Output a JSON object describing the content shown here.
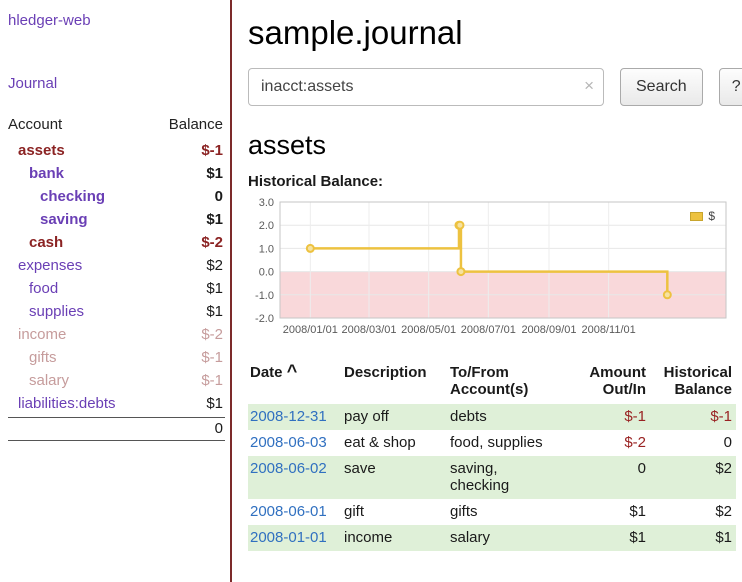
{
  "app": {
    "brand": "hledger-web",
    "nav_journal": "Journal"
  },
  "sidebar": {
    "accounts_header": {
      "account": "Account",
      "balance": "Balance"
    },
    "accounts": [
      {
        "name": "assets",
        "balance": "$-1",
        "indent": 0,
        "bold": true,
        "name_color": "red",
        "balance_color": "red"
      },
      {
        "name": "bank",
        "balance": "$1",
        "indent": 1,
        "bold": true,
        "name_color": "purple",
        "balance_color": "black"
      },
      {
        "name": "checking",
        "balance": "0",
        "indent": 2,
        "bold": true,
        "name_color": "purple",
        "balance_color": "black"
      },
      {
        "name": "saving",
        "balance": "$1",
        "indent": 2,
        "bold": true,
        "name_color": "purple",
        "balance_color": "black"
      },
      {
        "name": "cash",
        "balance": "$-2",
        "indent": 1,
        "bold": true,
        "name_color": "red",
        "balance_color": "red"
      },
      {
        "name": "expenses",
        "balance": "$2",
        "indent": 0,
        "bold": false,
        "name_color": "purple",
        "balance_color": "black"
      },
      {
        "name": "food",
        "balance": "$1",
        "indent": 1,
        "bold": false,
        "name_color": "purple",
        "balance_color": "black"
      },
      {
        "name": "supplies",
        "balance": "$1",
        "indent": 1,
        "bold": false,
        "name_color": "purple",
        "balance_color": "black"
      },
      {
        "name": "income",
        "balance": "$-2",
        "indent": 0,
        "bold": false,
        "name_color": "dimred",
        "balance_color": "dimred"
      },
      {
        "name": "gifts",
        "balance": "$-1",
        "indent": 1,
        "bold": false,
        "name_color": "dimred",
        "balance_color": "dimred"
      },
      {
        "name": "salary",
        "balance": "$-1",
        "indent": 1,
        "bold": false,
        "name_color": "dimred",
        "balance_color": "dimred"
      },
      {
        "name": "liabilities:debts",
        "balance": "$1",
        "indent": 0,
        "bold": false,
        "name_color": "purple",
        "balance_color": "black"
      }
    ],
    "total": "0"
  },
  "header": {
    "title": "sample.journal"
  },
  "search": {
    "value": "inacct:assets",
    "clear_icon": "×",
    "button": "Search",
    "help_button": "?"
  },
  "account_page": {
    "title": "assets",
    "chart_label": "Historical Balance:"
  },
  "chart_data": {
    "type": "line",
    "style": "step",
    "title": "Historical Balance:",
    "legend": [
      {
        "label": "$",
        "color": "#edc240"
      }
    ],
    "x_ticks": [
      "2008/01/01",
      "2008/03/01",
      "2008/05/01",
      "2008/07/01",
      "2008/09/01",
      "2008/11/01"
    ],
    "y_ticks": [
      3,
      2,
      1,
      0,
      -1,
      -2
    ],
    "y_tick_labels": [
      "3.0",
      "2.0",
      "1.0",
      "0.0",
      "-1.0",
      "-2.0"
    ],
    "ylim": [
      -2,
      3
    ],
    "xlim": [
      "2007-12-01",
      "2009-03-01"
    ],
    "grid": true,
    "legend_position": "top-right",
    "negative_region_color": "#f9d8da",
    "series": [
      {
        "name": "$",
        "points": [
          [
            "2008-01-01",
            1
          ],
          [
            "2008-06-01",
            2
          ],
          [
            "2008-06-02",
            2
          ],
          [
            "2008-06-03",
            0
          ],
          [
            "2008-12-31",
            -1
          ]
        ]
      }
    ]
  },
  "register": {
    "headers": {
      "date": "Date",
      "sort_indicator": "^",
      "description": "Description",
      "account": [
        "To/From",
        "Account(s)"
      ],
      "amount": [
        "Amount",
        "Out/In"
      ],
      "balance": [
        "Historical",
        "Balance"
      ]
    },
    "rows": [
      {
        "date": "2008-12-31",
        "description": "pay off",
        "accounts": "debts",
        "amount": "$-1",
        "balance": "$-1",
        "amount_neg": true,
        "balance_neg": true
      },
      {
        "date": "2008-06-03",
        "description": "eat & shop",
        "accounts": "food, supplies",
        "amount": "$-2",
        "balance": "0",
        "amount_neg": true,
        "balance_neg": false
      },
      {
        "date": "2008-06-02",
        "description": "save",
        "accounts": "saving,\nchecking",
        "amount": "0",
        "balance": "$2",
        "amount_neg": false,
        "balance_neg": false
      },
      {
        "date": "2008-06-01",
        "description": "gift",
        "accounts": "gifts",
        "amount": "$1",
        "balance": "$2",
        "amount_neg": false,
        "balance_neg": false
      },
      {
        "date": "2008-01-01",
        "description": "income",
        "accounts": "salary",
        "amount": "$1",
        "balance": "$1",
        "amount_neg": false,
        "balance_neg": false
      }
    ]
  },
  "colors": {
    "link_purple": "#6a3fb5",
    "negative_red": "#8b2323",
    "dim_negative": "#c69c9c",
    "date_blue": "#3070c0",
    "row_green": "#dff0d8",
    "chart_gold": "#edc240",
    "chart_negative_region": "#f9d8da",
    "divider_maroon": "#7c2a2a"
  }
}
